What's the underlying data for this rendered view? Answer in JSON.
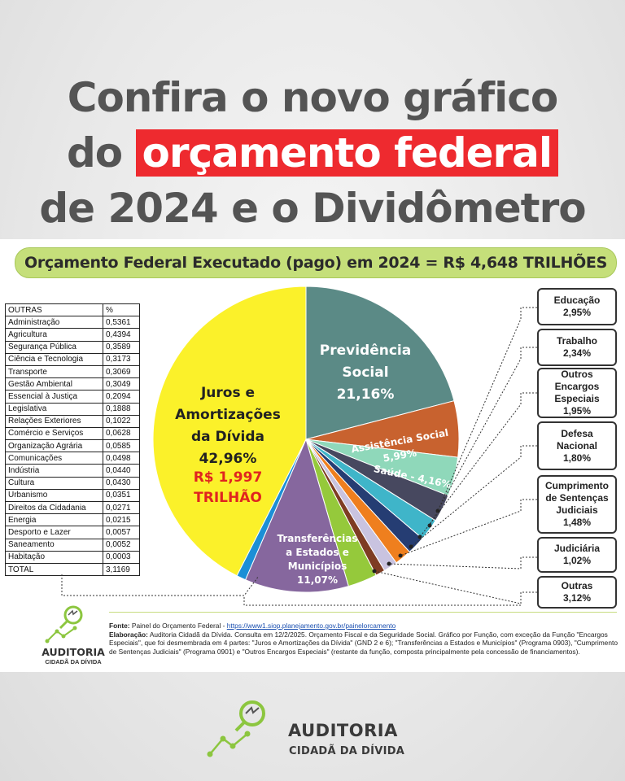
{
  "headline": {
    "line1": "Confira o novo gráfico",
    "line2_pre": "do ",
    "line2_highlight": "orçamento federal",
    "line3": "de 2024 e o Dividômetro"
  },
  "banner": "Orçamento Federal Executado (pago) em 2024 = R$ 4,648 TRILHÕES",
  "outras_table": {
    "header": [
      "OUTRAS",
      "%"
    ],
    "rows": [
      [
        "Administração",
        "0,5361"
      ],
      [
        "Agricultura",
        "0,4394"
      ],
      [
        "Segurança Pública",
        "0,3589"
      ],
      [
        "Ciência e Tecnologia",
        "0,3173"
      ],
      [
        "Transporte",
        "0,3069"
      ],
      [
        "Gestão Ambiental",
        "0,3049"
      ],
      [
        "Essencial à Justiça",
        "0,2094"
      ],
      [
        "Legislativa",
        "0,1888"
      ],
      [
        "Relações Exteriores",
        "0,1022"
      ],
      [
        "Comércio e Serviços",
        "0,0628"
      ],
      [
        "Organização Agrária",
        "0,0585"
      ],
      [
        "Comunicações",
        "0,0498"
      ],
      [
        "Indústria",
        "0,0440"
      ],
      [
        "Cultura",
        "0,0430"
      ],
      [
        "Urbanismo",
        "0,0351"
      ],
      [
        "Direitos da Cidadania",
        "0,0271"
      ],
      [
        "Energia",
        "0,0215"
      ],
      [
        "Desporto e Lazer",
        "0,0057"
      ],
      [
        "Saneamento",
        "0,0052"
      ],
      [
        "Habitação",
        "0,0003"
      ]
    ],
    "total": [
      "TOTAL",
      "3,1169"
    ]
  },
  "chart_data": {
    "type": "pie",
    "title": "Orçamento Federal Executado (pago) em 2024 = R$ 4,648 TRILHÕES",
    "slices": [
      {
        "name": "Previdência Social",
        "value": 21.16,
        "label": "21,16%",
        "color": "#5b8a86"
      },
      {
        "name": "Assistência Social",
        "value": 5.99,
        "label": "5,99%",
        "color": "#c8622f"
      },
      {
        "name": "Saúde",
        "value": 4.16,
        "label": "4,16%",
        "color": "#8fd8ba"
      },
      {
        "name": "Educação",
        "value": 2.95,
        "label": "2,95%",
        "color": "#47485f"
      },
      {
        "name": "Trabalho",
        "value": 2.34,
        "label": "2,34%",
        "color": "#3fb5c9"
      },
      {
        "name": "Outros Encargos Especiais",
        "value": 1.95,
        "label": "1,95%",
        "color": "#253d73"
      },
      {
        "name": "Defesa Nacional",
        "value": 1.8,
        "label": "1,80%",
        "color": "#ef7f1e"
      },
      {
        "name": "Cumprimento de Sentenças Judiciais",
        "value": 1.48,
        "label": "1,48%",
        "color": "#c9c3e0"
      },
      {
        "name": "Judiciária",
        "value": 1.02,
        "label": "1,02%",
        "color": "#7e3c23"
      },
      {
        "name": "Outras",
        "value": 3.12,
        "label": "3,12%",
        "color": "#95c93b"
      },
      {
        "name": "Transferências a Estados e Municípios",
        "value": 11.07,
        "label": "11,07%",
        "color": "#86679e"
      },
      {
        "name": "Outros (azul)",
        "value": 1.0,
        "label": "",
        "color": "#1c8fd6"
      },
      {
        "name": "Juros e Amortizações da Dívida",
        "value": 42.96,
        "label": "42,96%",
        "color": "#fbf12a"
      }
    ],
    "labels": {
      "previdencia": [
        "Previdência",
        "Social",
        "21,16%"
      ],
      "assistencia": "Assistência Social",
      "assistencia_pct": "5,99%",
      "saude": "Saúde - 4,16%",
      "transferencias": [
        "Transferências",
        "a Estados e",
        "Municípios",
        "11,07%"
      ],
      "juros": [
        "Juros e",
        "Amortizações",
        "da Dívida",
        "42,96%"
      ],
      "juros_valor": [
        "R$ 1,997",
        "TRILHÃO"
      ]
    }
  },
  "side_boxes": [
    {
      "lines": [
        "Educação",
        "2,95%"
      ]
    },
    {
      "lines": [
        "Trabalho",
        "2,34%"
      ]
    },
    {
      "lines": [
        "Outros Encargos",
        "Especiais",
        "1,95%"
      ]
    },
    {
      "lines": [
        "Defesa",
        "Nacional",
        "1,80%"
      ]
    },
    {
      "lines": [
        "Cumprimento",
        "de Sentenças",
        "Judiciais",
        "1,48%"
      ]
    },
    {
      "lines": [
        "Judiciária",
        "1,02%"
      ]
    },
    {
      "lines": [
        "Outras",
        "3,12%"
      ]
    }
  ],
  "source": {
    "fonte_label": "Fonte:",
    "fonte_text": " Painel do Orçamento Federal - ",
    "fonte_url": "https://www1.siop.planejamento.gov.br/painelorcamento",
    "elab_label": "Elaboração:",
    "elab_text": " Auditoria Cidadã da Dívida. Consulta em 12/2/2025. Orçamento Fiscal e da Seguridade Social. Gráfico por Função, com exceção da Função \"Encargos Especiais\", que foi desmembrada em 4 partes: \"Juros e Amortizações da Dívida\" (GND 2 e 6); \"Transferências a Estados e Municípios\" (Programa 0903), \"Cumprimento de Sentenças Judiciais\" (Programa 0901) e \"Outros Encargos Especiais\" (restante da função, composta principalmente pela concessão de financiamentos)."
  },
  "logo": {
    "line1": "AUDITORIA",
    "line2": "CIDADÃ DA DÍVIDA"
  }
}
